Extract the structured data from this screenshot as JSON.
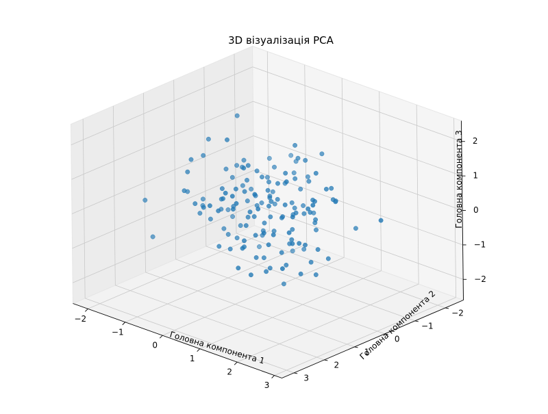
{
  "chart_data": {
    "type": "scatter",
    "projection": "3d",
    "title": "3D візуалізація PCA",
    "xlabel": "Головна компонента 1",
    "ylabel": "Головна компонента 2",
    "zlabel": "Головна компонента 3",
    "xticks": [
      "−2",
      "−1",
      "0",
      "1",
      "2",
      "3"
    ],
    "yticks": [
      "−2",
      "−1",
      "0",
      "1",
      "2",
      "3"
    ],
    "zticks": [
      "−2",
      "−1",
      "0",
      "1",
      "2"
    ],
    "xlim": [
      -2.4,
      3.2
    ],
    "ylim": [
      -2.6,
      3.4
    ],
    "zlim": [
      -2.6,
      2.6
    ],
    "grid": true,
    "marker_color": "#1f77b4",
    "points_count": 150
  }
}
